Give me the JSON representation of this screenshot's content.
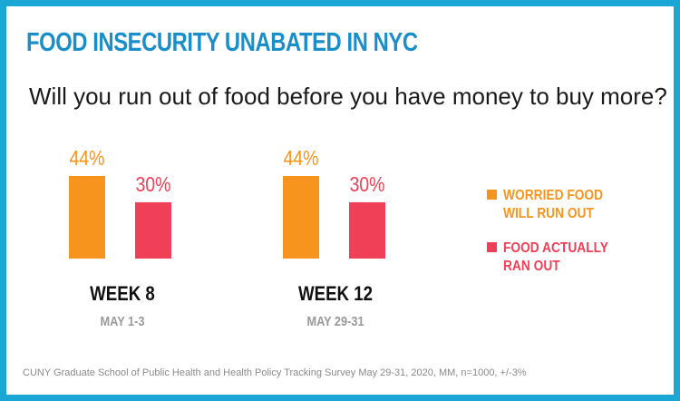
{
  "title": "FOOD INSECURITY UNABATED IN NYC",
  "subtitle": "Will you run out of food before you have money to buy more?",
  "source": "CUNY Graduate School of Public Health and Health Policy Tracking Survey May 29-31, 2020, MM, n=1000, +/-3%",
  "colors": {
    "frame": "#1ba7d6",
    "title": "#1a8ec9",
    "worried": "#f7941d",
    "ran_out": "#ef4057"
  },
  "chart_data": {
    "type": "bar",
    "title": "Will you run out of food before you have money to buy more?",
    "categories": [
      "WEEK 8",
      "WEEK 12"
    ],
    "category_dates": [
      "MAY 1-3",
      "MAY 29-31"
    ],
    "series": [
      {
        "name": "WORRIED FOOD WILL RUN OUT",
        "legend_lines": [
          "WORRIED FOOD",
          "WILL RUN OUT"
        ],
        "values": [
          44,
          44
        ],
        "labels": [
          "44%",
          "44%"
        ]
      },
      {
        "name": "FOOD ACTUALLY RAN OUT",
        "legend_lines": [
          "FOOD ACTUALLY",
          "RAN OUT"
        ],
        "values": [
          30,
          30
        ],
        "labels": [
          "30%",
          "30%"
        ]
      }
    ],
    "ylim": [
      0,
      100
    ],
    "xlabel": "",
    "ylabel": "",
    "grid": false,
    "legend": "right"
  }
}
